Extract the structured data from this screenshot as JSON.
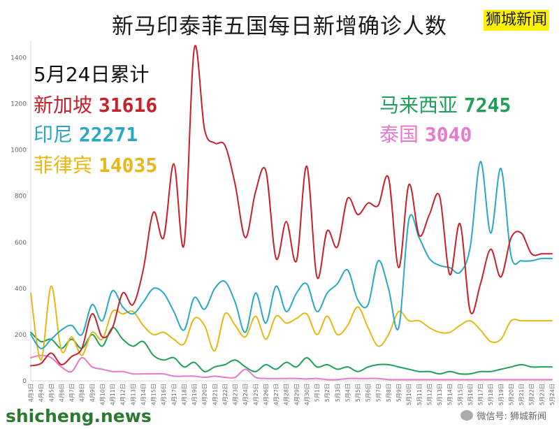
{
  "title": "新马印泰菲五国每日新增确诊人数",
  "brand": "狮城新闻",
  "cumulative": {
    "heading": "5月24日累计",
    "items": [
      {
        "country": "新加坡",
        "value": "31616",
        "color": "#c8202a"
      },
      {
        "country": "印尼",
        "value": "22271",
        "color": "#29a7c4"
      },
      {
        "country": "菲律宾",
        "value": "14035",
        "color": "#e7b716"
      },
      {
        "country": "马来西亚",
        "value": "7245",
        "color": "#1f9f5a"
      },
      {
        "country": "泰国",
        "value": "3040",
        "color": "#e779cf"
      }
    ]
  },
  "footer": {
    "watermark": "shicheng.news",
    "wechat": "微信号: 狮城新闻"
  },
  "chart_data": {
    "type": "line",
    "ylim": [
      0,
      1450
    ],
    "yticks": [
      0,
      200,
      400,
      600,
      800,
      1000,
      1200,
      1400
    ],
    "grid": false,
    "categories": [
      "4月3日",
      "4月4日",
      "4月5日",
      "4月6日",
      "4月7日",
      "4月8日",
      "4月9日",
      "4月10日",
      "4月11日",
      "4月12日",
      "4月13日",
      "4月14日",
      "4月15日",
      "4月16日",
      "4月17日",
      "4月18日",
      "4月19日",
      "4月20日",
      "4月21日",
      "4月22日",
      "4月23日",
      "4月24日",
      "4月25日",
      "4月26日",
      "4月27日",
      "4月28日",
      "4月29日",
      "4月30日",
      "5月1日",
      "5月2日",
      "5月3日",
      "5月4日",
      "5月5日",
      "5月6日",
      "5月7日",
      "5月8日",
      "5月9日",
      "5月10日",
      "5月11日",
      "5月12日",
      "5月13日",
      "5月14日",
      "5月15日",
      "5月16日",
      "5月17日",
      "5月18日",
      "5月19日",
      "5月20日",
      "5月21日",
      "5月22日",
      "5月23日",
      "5月24日"
    ],
    "series": [
      {
        "name": "新加坡",
        "color": "#c8202a",
        "values": [
          65,
          75,
          120,
          70,
          105,
          140,
          290,
          190,
          230,
          380,
          330,
          480,
          730,
          620,
          940,
          590,
          1440,
          1090,
          1030,
          1020,
          850,
          620,
          820,
          910,
          530,
          690,
          520,
          930,
          450,
          650,
          580,
          790,
          720,
          770,
          760,
          880,
          490,
          850,
          630,
          720,
          800,
          460,
          680,
          300,
          420,
          570,
          450,
          620,
          640,
          550,
          550,
          550
        ]
      },
      {
        "name": "印尼",
        "color": "#29a7c4",
        "values": [
          200,
          140,
          180,
          220,
          240,
          200,
          330,
          260,
          390,
          320,
          290,
          340,
          400,
          380,
          300,
          220,
          360,
          310,
          400,
          430,
          340,
          210,
          380,
          250,
          410,
          300,
          380,
          420,
          300,
          380,
          420,
          480,
          350,
          330,
          520,
          400,
          230,
          700,
          620,
          530,
          500,
          490,
          470,
          580,
          950,
          640,
          920,
          540,
          520,
          520,
          530,
          530
        ]
      },
      {
        "name": "菲律宾",
        "color": "#e7b716",
        "values": [
          380,
          90,
          410,
          130,
          190,
          110,
          210,
          180,
          300,
          290,
          300,
          240,
          200,
          210,
          180,
          160,
          270,
          240,
          130,
          290,
          240,
          190,
          280,
          180,
          280,
          250,
          270,
          290,
          200,
          280,
          200,
          240,
          320,
          230,
          150,
          200,
          300,
          260,
          260,
          230,
          210,
          210,
          240,
          260,
          220,
          170,
          180,
          260,
          260,
          260,
          260,
          260
        ]
      },
      {
        "name": "马来西亚",
        "color": "#1f9f5a",
        "values": [
          210,
          170,
          180,
          140,
          180,
          140,
          200,
          150,
          230,
          180,
          150,
          170,
          110,
          90,
          100,
          60,
          80,
          40,
          60,
          70,
          90,
          60,
          40,
          70,
          50,
          80,
          60,
          100,
          60,
          70,
          50,
          60,
          40,
          60,
          70,
          70,
          60,
          50,
          40,
          40,
          30,
          40,
          30,
          30,
          40,
          40,
          50,
          60,
          70,
          60,
          60,
          60
        ]
      },
      {
        "name": "泰国",
        "color": "#e779cf",
        "values": [
          100,
          110,
          100,
          60,
          40,
          100,
          60,
          50,
          40,
          40,
          30,
          30,
          30,
          30,
          20,
          20,
          20,
          15,
          20,
          15,
          15,
          50,
          15,
          10,
          10,
          10,
          10,
          8,
          10,
          5,
          5,
          10,
          10,
          10,
          10,
          5,
          5,
          5,
          5,
          5,
          5,
          5,
          5,
          5,
          5,
          5,
          5,
          5,
          5,
          5,
          5,
          5
        ]
      }
    ]
  }
}
